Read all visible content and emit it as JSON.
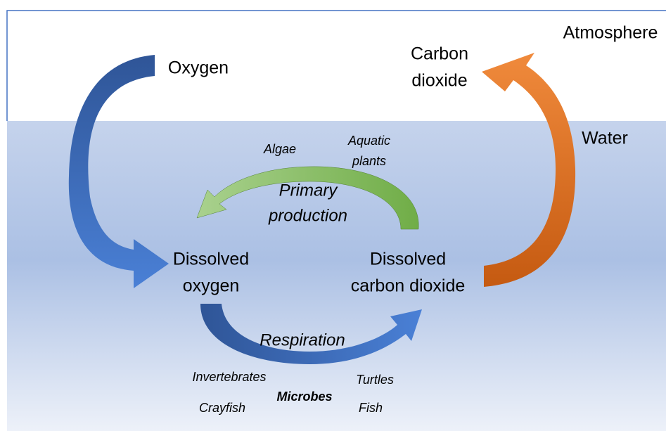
{
  "regions": {
    "atmosphere": "Atmosphere",
    "water": "Water"
  },
  "nodes": [
    {
      "lines": [
        "Oxygen"
      ]
    },
    {
      "lines": [
        "Carbon",
        "dioxide"
      ]
    },
    {
      "lines": [
        "Dissolved",
        "oxygen"
      ]
    },
    {
      "lines": [
        "Dissolved",
        "carbon dioxide"
      ]
    }
  ],
  "processes": [
    {
      "lines": [
        "Primary",
        "production"
      ],
      "organisms": [
        [
          "Algae"
        ],
        [
          "Aquatic",
          "plants"
        ]
      ]
    },
    {
      "lines": [
        "Respiration"
      ],
      "organisms": [
        [
          "Invertebrates"
        ],
        [
          "Crayfish"
        ],
        [
          "Microbes"
        ],
        [
          "Turtles"
        ],
        [
          "Fish"
        ]
      ]
    }
  ]
}
